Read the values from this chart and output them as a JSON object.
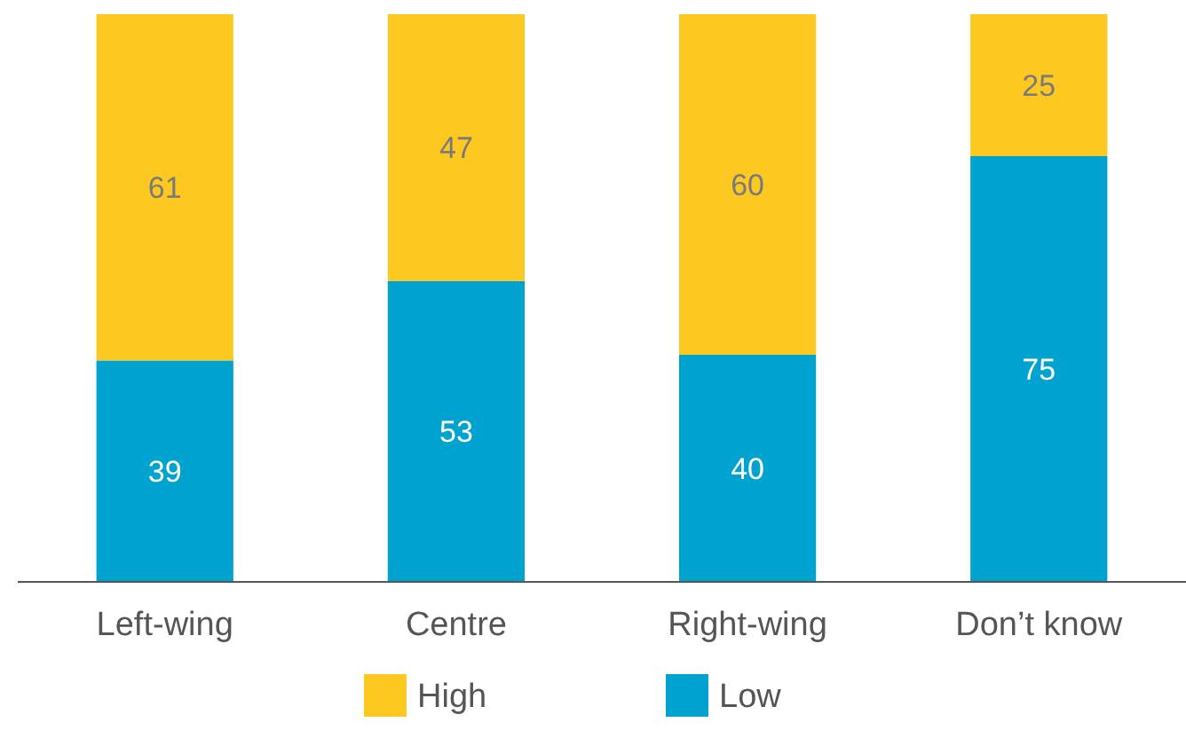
{
  "chart_data": {
    "type": "bar",
    "stacked": true,
    "categories": [
      "Left-wing",
      "Centre",
      "Right-wing",
      "Don’t know"
    ],
    "series": [
      {
        "name": "Low",
        "color": "#00a3d0",
        "values": [
          39,
          53,
          40,
          75
        ]
      },
      {
        "name": "High",
        "color": "#fdc920",
        "values": [
          61,
          47,
          60,
          25
        ]
      }
    ],
    "data_labels": true,
    "legend": "bottom"
  }
}
